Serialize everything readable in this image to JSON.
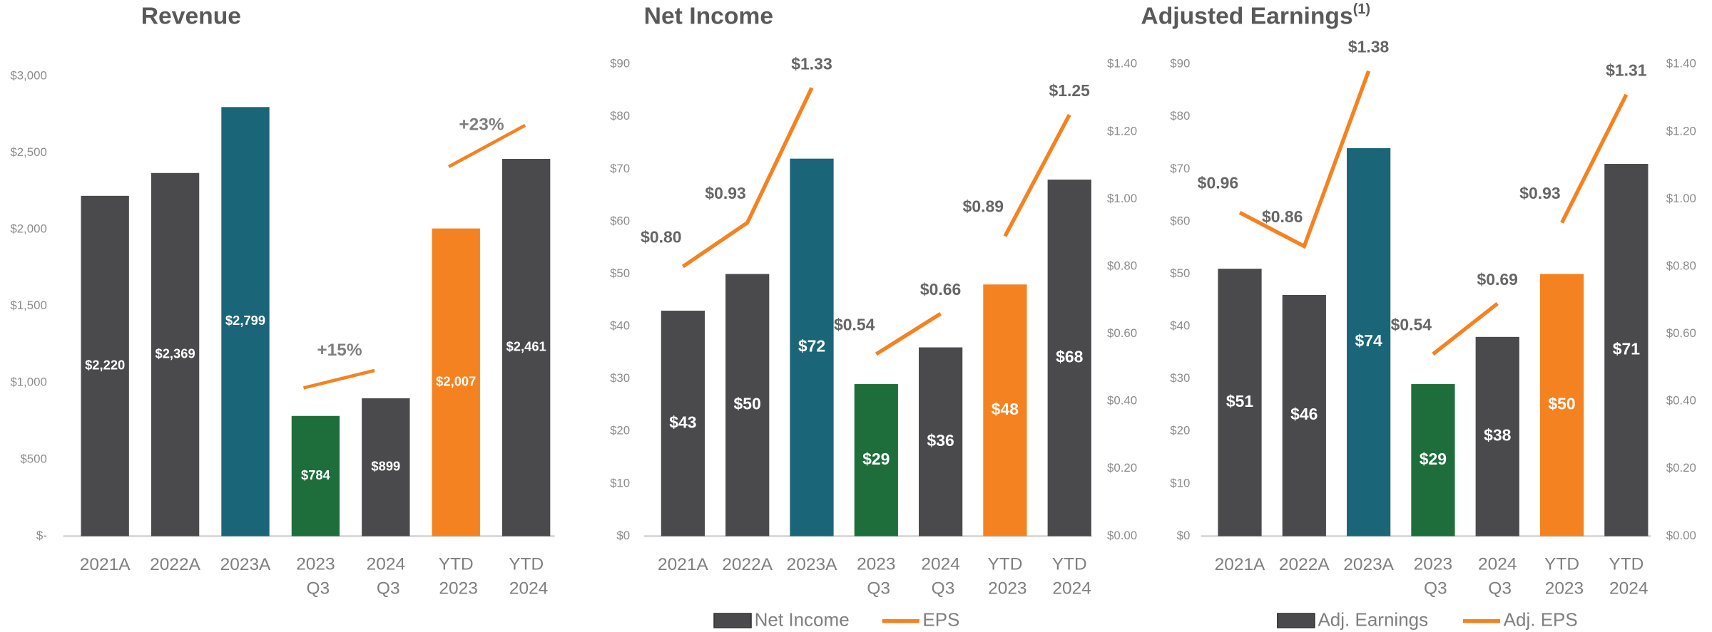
{
  "chart_data": [
    {
      "type": "bar",
      "title": "Revenue",
      "categories": [
        "2021A",
        "2022A",
        "2023A",
        "2023 Q3",
        "2024 Q3",
        "YTD 2023",
        "YTD 2024"
      ],
      "values": [
        2220,
        2369,
        2799,
        784,
        899,
        2007,
        2461
      ],
      "value_labels": [
        "$2,220",
        "$2,369",
        "$2,799",
        "$784",
        "$899",
        "$2,007",
        "$2,461"
      ],
      "colors": [
        "#4a4a4c",
        "#4a4a4c",
        "#1a6678",
        "#1e6e3c",
        "#4a4a4c",
        "#f58220",
        "#4a4a4c"
      ],
      "ylim": [
        0,
        3000
      ],
      "yticks": [
        {
          "value": 0,
          "label": "$-"
        },
        {
          "value": 500,
          "label": "$500"
        },
        {
          "value": 1000,
          "label": "$1,000"
        },
        {
          "value": 1500,
          "label": "$1,500"
        },
        {
          "value": 2000,
          "label": "$2,000"
        },
        {
          "value": 2500,
          "label": "$2,500"
        },
        {
          "value": 3000,
          "label": "$3,000"
        }
      ],
      "annotations": [
        "+15%",
        "+23%"
      ]
    },
    {
      "type": "bar_line",
      "title": "Net Income",
      "categories": [
        "2021A",
        "2022A",
        "2023A",
        "2023 Q3",
        "2024 Q3",
        "YTD 2023",
        "YTD 2024"
      ],
      "series": [
        {
          "name": "Net Income",
          "color": "#4a4a4c",
          "values": [
            43,
            50,
            72,
            29,
            36,
            48,
            68
          ],
          "value_labels": [
            "$43",
            "$50",
            "$72",
            "$29",
            "$36",
            "$48",
            "$68"
          ],
          "colors": [
            "#4a4a4c",
            "#4a4a4c",
            "#1a6678",
            "#1e6e3c",
            "#4a4a4c",
            "#f58220",
            "#4a4a4c"
          ]
        },
        {
          "name": "EPS",
          "color": "#f58220",
          "axis": "y2",
          "values": [
            0.8,
            0.93,
            1.33,
            0.54,
            0.66,
            0.89,
            1.25
          ],
          "value_labels": [
            "$0.80",
            "$0.93",
            "$1.33",
            "$0.54",
            "$0.66",
            "$0.89",
            "$1.25"
          ]
        }
      ],
      "ylim": [
        0,
        90
      ],
      "yticks": [
        {
          "value": 0,
          "label": "$0"
        },
        {
          "value": 10,
          "label": "$10"
        },
        {
          "value": 20,
          "label": "$20"
        },
        {
          "value": 30,
          "label": "$30"
        },
        {
          "value": 40,
          "label": "$40"
        },
        {
          "value": 50,
          "label": "$50"
        },
        {
          "value": 60,
          "label": "$60"
        },
        {
          "value": 70,
          "label": "$70"
        },
        {
          "value": 80,
          "label": "$80"
        },
        {
          "value": 90,
          "label": "$90"
        }
      ],
      "y2lim": [
        0,
        1.4
      ],
      "y2ticks": [
        {
          "value": 0,
          "label": "$0.00"
        },
        {
          "value": 0.2,
          "label": "$0.20"
        },
        {
          "value": 0.4,
          "label": "$0.40"
        },
        {
          "value": 0.6,
          "label": "$0.60"
        },
        {
          "value": 0.8,
          "label": "$0.80"
        },
        {
          "value": 1.0,
          "label": "$1.00"
        },
        {
          "value": 1.2,
          "label": "$1.20"
        },
        {
          "value": 1.4,
          "label": "$1.40"
        }
      ]
    },
    {
      "type": "bar_line",
      "title": "Adjusted Earnings",
      "title_note": "(1)",
      "categories": [
        "2021A",
        "2022A",
        "2023A",
        "2023 Q3",
        "2024 Q3",
        "YTD 2023",
        "YTD 2024"
      ],
      "series": [
        {
          "name": "Adj. Earnings",
          "color": "#4a4a4c",
          "values": [
            51,
            46,
            74,
            29,
            38,
            50,
            71
          ],
          "value_labels": [
            "$51",
            "$46",
            "$74",
            "$29",
            "$38",
            "$50",
            "$71"
          ],
          "colors": [
            "#4a4a4c",
            "#4a4a4c",
            "#1a6678",
            "#1e6e3c",
            "#4a4a4c",
            "#f58220",
            "#4a4a4c"
          ]
        },
        {
          "name": "Adj. EPS",
          "color": "#f58220",
          "axis": "y2",
          "values": [
            0.96,
            0.86,
            1.38,
            0.54,
            0.69,
            0.93,
            1.31
          ],
          "value_labels": [
            "$0.96",
            "$0.86",
            "$1.38",
            "$0.54",
            "$0.69",
            "$0.93",
            "$1.31"
          ]
        }
      ],
      "ylim": [
        0,
        90
      ],
      "yticks": [
        {
          "value": 0,
          "label": "$0"
        },
        {
          "value": 10,
          "label": "$10"
        },
        {
          "value": 20,
          "label": "$20"
        },
        {
          "value": 30,
          "label": "$30"
        },
        {
          "value": 40,
          "label": "$40"
        },
        {
          "value": 50,
          "label": "$50"
        },
        {
          "value": 60,
          "label": "$60"
        },
        {
          "value": 70,
          "label": "$70"
        },
        {
          "value": 80,
          "label": "$80"
        },
        {
          "value": 90,
          "label": "$90"
        }
      ],
      "y2lim": [
        0,
        1.4
      ],
      "y2ticks": [
        {
          "value": 0,
          "label": "$0.00"
        },
        {
          "value": 0.2,
          "label": "$0.20"
        },
        {
          "value": 0.4,
          "label": "$0.40"
        },
        {
          "value": 0.6,
          "label": "$0.60"
        },
        {
          "value": 0.8,
          "label": "$0.80"
        },
        {
          "value": 1.0,
          "label": "$1.00"
        },
        {
          "value": 1.2,
          "label": "$1.20"
        },
        {
          "value": 1.4,
          "label": "$1.40"
        }
      ]
    }
  ]
}
